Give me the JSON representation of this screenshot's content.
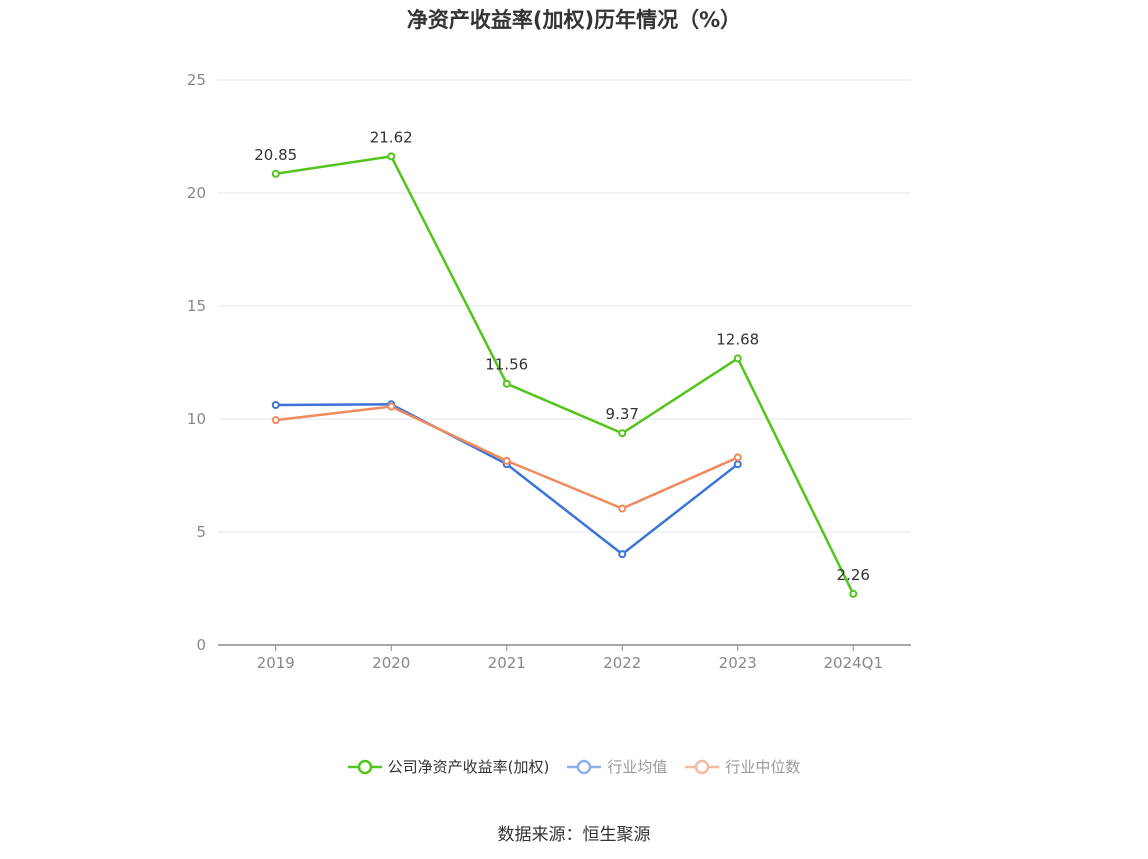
{
  "chart_data": {
    "type": "line",
    "title": "净资产收益率(加权)历年情况（%）",
    "categories": [
      "2019",
      "2020",
      "2021",
      "2022",
      "2023",
      "2024Q1"
    ],
    "ylim": [
      0,
      25
    ],
    "yticks": [
      0,
      5,
      10,
      15,
      20,
      25
    ],
    "grid": true,
    "legend_position": "bottom",
    "series": [
      {
        "name": "公司净资产收益率(加权)",
        "color": "#52c41a",
        "values": [
          20.85,
          21.62,
          11.56,
          9.37,
          12.68,
          2.26
        ],
        "labels": true
      },
      {
        "name": "行业均值",
        "color": "#3b74d9",
        "values": [
          10.62,
          10.65,
          8.0,
          4.02,
          8.0,
          null
        ],
        "labels": false
      },
      {
        "name": "行业中位数",
        "color": "#f08a5d",
        "values": [
          9.95,
          10.55,
          8.15,
          6.04,
          8.3,
          null
        ],
        "labels": false
      }
    ],
    "legend_colors": [
      "#52c41a",
      "#8fb1ea",
      "#f5b9a0"
    ]
  },
  "source": "数据来源：恒生聚源"
}
